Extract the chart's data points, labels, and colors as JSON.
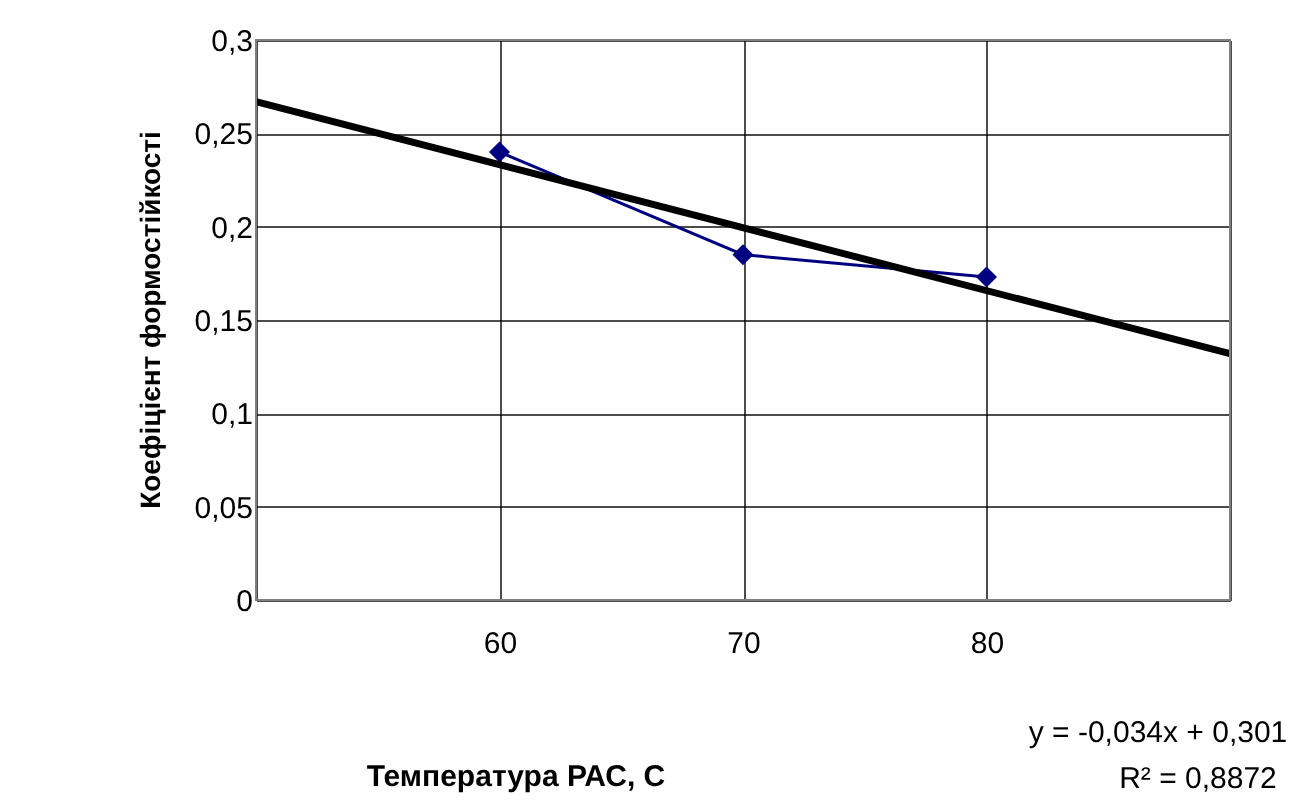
{
  "chart_data": {
    "type": "line",
    "xlabel": "Температура РАС, С",
    "ylabel": "Коефіцієнт формостійкості",
    "x": [
      60,
      70,
      80
    ],
    "series": [
      {
        "color": "#000080",
        "marker": "diamond",
        "line_style": "solid",
        "values": [
          0.24,
          0.185,
          0.173
        ]
      },
      {
        "color": "#000000",
        "marker": "none",
        "line_style": "solid",
        "x": [
          50,
          90
        ],
        "values": [
          0.267,
          0.132
        ]
      }
    ],
    "xlim": [
      50,
      90
    ],
    "xticks": [
      {
        "value": 50,
        "label": null
      },
      60,
      70,
      80,
      {
        "value": 90,
        "label": null
      }
    ],
    "ylim": [
      0,
      0.3
    ],
    "yticks": [
      {
        "value": 0,
        "label": "0"
      },
      {
        "value": 0.05,
        "label": "0,05"
      },
      {
        "value": 0.1,
        "label": "0,1"
      },
      {
        "value": 0.15,
        "label": "0,15"
      },
      {
        "value": 0.2,
        "label": "0,2"
      },
      {
        "value": 0.25,
        "label": "0,25"
      },
      {
        "value": 0.3,
        "label": "0,3"
      }
    ],
    "grid": true,
    "annotations": [
      "y = -0,034x + 0,301",
      "R² = 0,8872"
    ]
  }
}
